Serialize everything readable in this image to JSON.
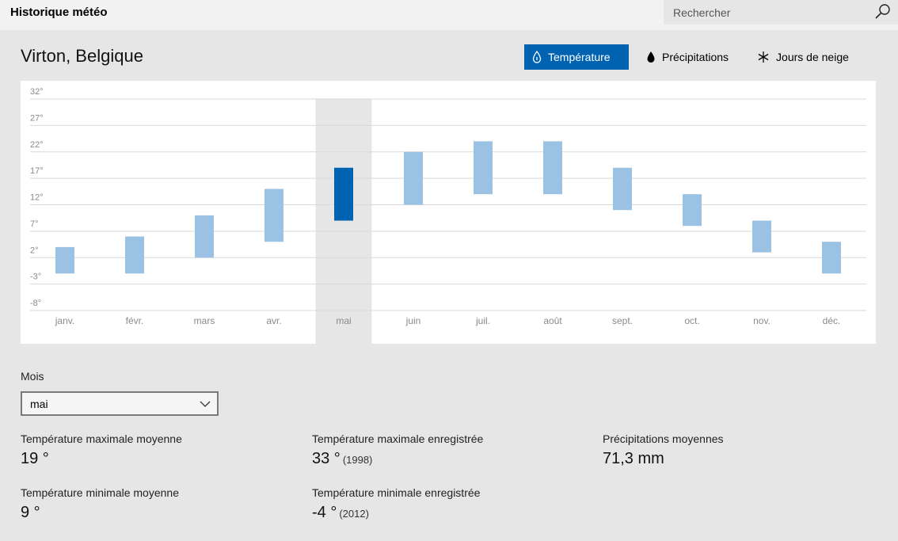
{
  "app": {
    "title": "Historique météo"
  },
  "search": {
    "placeholder": "Rechercher"
  },
  "location": "Virton, Belgique",
  "tabs": [
    {
      "label": "Température",
      "icon": "thermometer-drop-icon",
      "active": true
    },
    {
      "label": "Précipitations",
      "icon": "drop-icon",
      "active": false
    },
    {
      "label": "Jours de neige",
      "icon": "snowflake-icon",
      "active": false
    }
  ],
  "chart_data": {
    "type": "bar",
    "subtype": "range",
    "categories": [
      "janv.",
      "févr.",
      "mars",
      "avr.",
      "mai",
      "juin",
      "juil.",
      "août",
      "sept.",
      "oct.",
      "nov.",
      "déc."
    ],
    "low": [
      -1,
      -1,
      2,
      5,
      9,
      12,
      14,
      14,
      11,
      8,
      3,
      -1
    ],
    "high": [
      4,
      6,
      10,
      15,
      19,
      22,
      24,
      24,
      19,
      14,
      9,
      5
    ],
    "selected": "mai",
    "y_ticks": [
      "32°",
      "27°",
      "22°",
      "17°",
      "12°",
      "7°",
      "2°",
      "-3°",
      "-8°"
    ],
    "ylim": [
      -8,
      32
    ],
    "grid": true,
    "colors": {
      "bar": "#9bc2e3",
      "bar_selected": "#0063b1",
      "selected_band": "#e6e6e6"
    }
  },
  "month_picker": {
    "label": "Mois",
    "value": "mai"
  },
  "stats": {
    "avg_max": {
      "label": "Température maximale moyenne",
      "value": "19 °"
    },
    "avg_min": {
      "label": "Température minimale moyenne",
      "value": "9 °"
    },
    "rec_max": {
      "label": "Température maximale enregistrée",
      "value": "33 °",
      "year": "(1998)"
    },
    "rec_min": {
      "label": "Température minimale enregistrée",
      "value": "-4 °",
      "year": "(2012)"
    },
    "precip": {
      "label": "Précipitations moyennes",
      "value": "71,3 mm"
    }
  }
}
